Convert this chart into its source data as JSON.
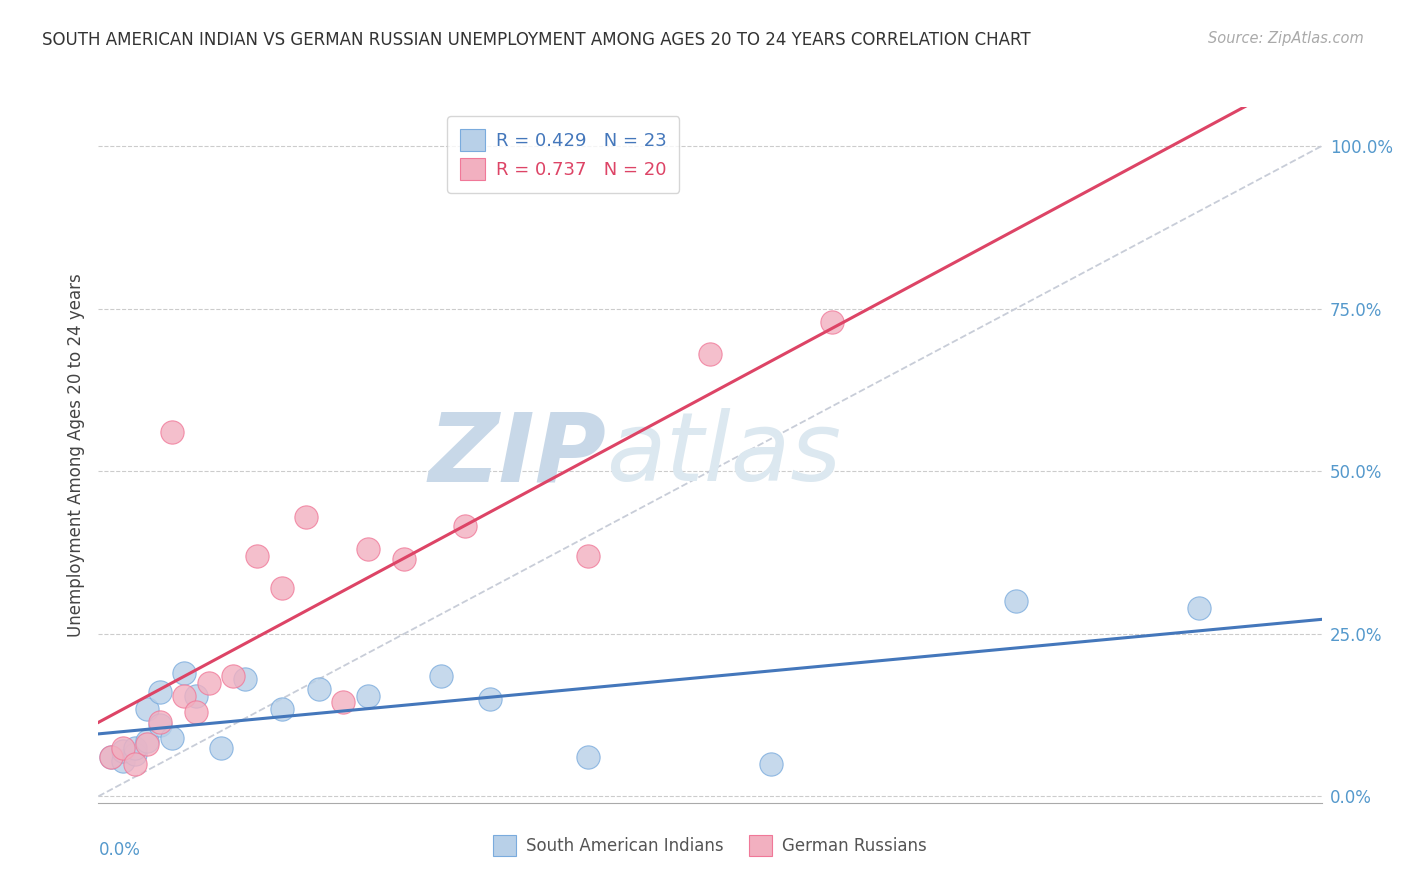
{
  "title": "SOUTH AMERICAN INDIAN VS GERMAN RUSSIAN UNEMPLOYMENT AMONG AGES 20 TO 24 YEARS CORRELATION CHART",
  "source": "Source: ZipAtlas.com",
  "ylabel": "Unemployment Among Ages 20 to 24 years",
  "y_ticks": [
    0.0,
    0.25,
    0.5,
    0.75,
    1.0
  ],
  "y_tick_labels": [
    "0.0%",
    "25.0%",
    "50.0%",
    "75.0%",
    "100.0%"
  ],
  "x_range": [
    0.0,
    0.1
  ],
  "y_range": [
    -0.01,
    1.06
  ],
  "blue_R": "0.429",
  "blue_N": "23",
  "pink_R": "0.737",
  "pink_N": "20",
  "blue_label": "South American Indians",
  "pink_label": "German Russians",
  "blue_fill": "#b8d0e8",
  "pink_fill": "#f2b0c0",
  "blue_edge": "#7aabdd",
  "pink_edge": "#f07898",
  "blue_line": "#4477bb",
  "pink_line": "#dd4466",
  "diag_color": "#c8cdd8",
  "bg_color": "#ffffff",
  "watermark_zip": "ZIP",
  "watermark_atlas": "atlas",
  "blue_x": [
    0.001,
    0.002,
    0.002,
    0.003,
    0.003,
    0.004,
    0.004,
    0.005,
    0.005,
    0.006,
    0.007,
    0.008,
    0.01,
    0.012,
    0.015,
    0.018,
    0.022,
    0.028,
    0.032,
    0.04,
    0.055,
    0.075,
    0.09
  ],
  "blue_y": [
    0.06,
    0.055,
    0.07,
    0.065,
    0.075,
    0.085,
    0.135,
    0.11,
    0.16,
    0.09,
    0.19,
    0.155,
    0.075,
    0.18,
    0.135,
    0.165,
    0.155,
    0.185,
    0.15,
    0.06,
    0.05,
    0.3,
    0.29
  ],
  "pink_x": [
    0.001,
    0.002,
    0.003,
    0.004,
    0.005,
    0.006,
    0.007,
    0.008,
    0.009,
    0.011,
    0.013,
    0.015,
    0.017,
    0.02,
    0.022,
    0.025,
    0.03,
    0.04,
    0.05,
    0.06
  ],
  "pink_y": [
    0.06,
    0.075,
    0.05,
    0.08,
    0.115,
    0.56,
    0.155,
    0.13,
    0.175,
    0.185,
    0.37,
    0.32,
    0.43,
    0.145,
    0.38,
    0.365,
    0.415,
    0.37,
    0.68,
    0.73
  ],
  "title_fontsize": 12,
  "source_fontsize": 10.5,
  "tick_fontsize": 12,
  "ylabel_fontsize": 12,
  "legend_fontsize": 13,
  "watermark_fontsize": 70
}
